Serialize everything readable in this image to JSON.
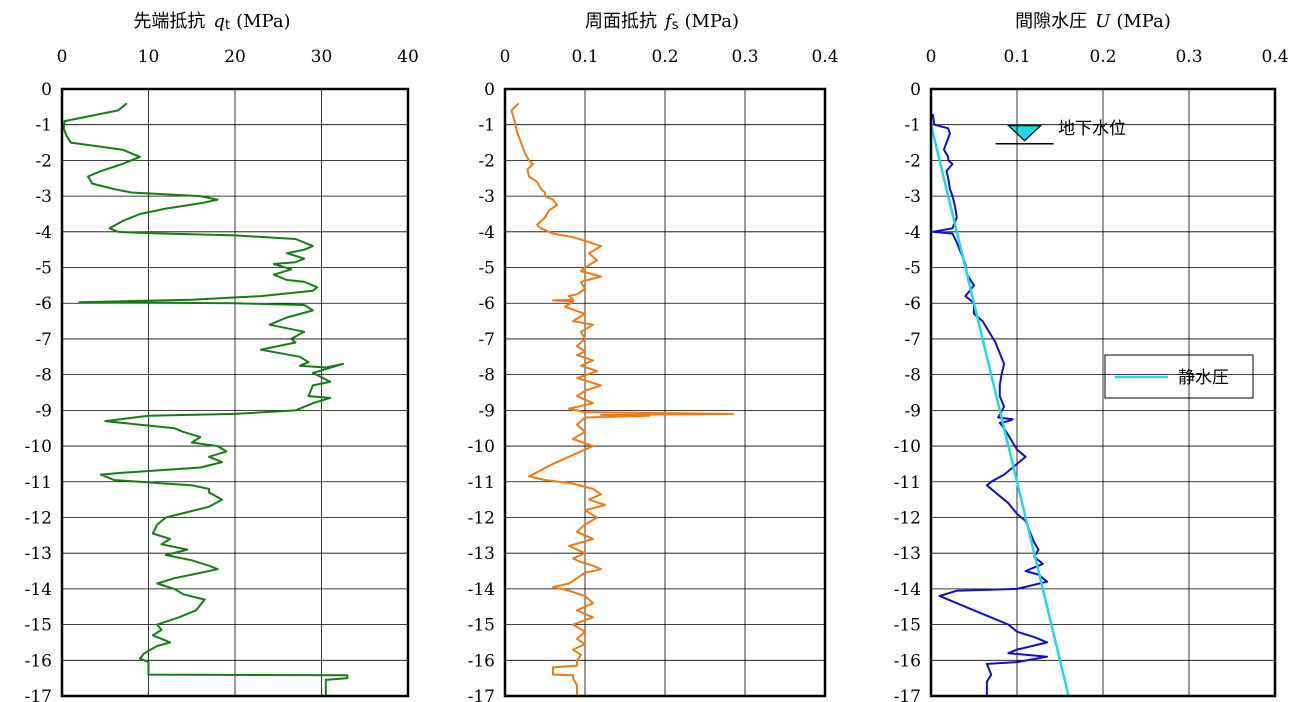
{
  "chart_data": [
    {
      "type": "line",
      "title_main": "先端抵抗",
      "title_symbol": "q",
      "title_subscript": "t",
      "title_unit": "(MPa)",
      "xlim": [
        0,
        40
      ],
      "ylim": [
        -17,
        0
      ],
      "xticks": [
        "0",
        "10",
        "20",
        "30",
        "40"
      ],
      "yticks": [
        "0",
        "-1",
        "-2",
        "-3",
        "-4",
        "-5",
        "-6",
        "-7",
        "-8",
        "-9",
        "-10",
        "-11",
        "-12",
        "-13",
        "-14",
        "-15",
        "-16",
        "-17"
      ],
      "grid": true,
      "series": [
        {
          "color": "#1a7a1a",
          "x": [
            7.5,
            6.5,
            0.3,
            0.2,
            0.5,
            1,
            4,
            7,
            9,
            7,
            4.5,
            3,
            3.5,
            6,
            8,
            16,
            18,
            16,
            12,
            9,
            7,
            5.5,
            6.5,
            8,
            12,
            20,
            27,
            29,
            28,
            26,
            28,
            27,
            24.5,
            26.5,
            24.5,
            26,
            28,
            29.5,
            29,
            23,
            15,
            2,
            20,
            28,
            29,
            26,
            24,
            28,
            26.5,
            27,
            23,
            27.5,
            28.5,
            27.5,
            30.5,
            32.5,
            29,
            31,
            29,
            28.5,
            31,
            29,
            27,
            20,
            10,
            5,
            13,
            14,
            16,
            15,
            18,
            19,
            17,
            18.5,
            16,
            7,
            4.5,
            6,
            12,
            15,
            17,
            17,
            18.5,
            17,
            14.5,
            12,
            11,
            10.5,
            12.5,
            11.5,
            14.5,
            12,
            15,
            17,
            18,
            15,
            13,
            11,
            13,
            14,
            16.5,
            15.5,
            13.5,
            11,
            11.5,
            10.5,
            12.5,
            11,
            9.5,
            9,
            10,
            10,
            33,
            33,
            30.5,
            30.5
          ],
          "y": [
            -0.4,
            -0.6,
            -0.9,
            -1.1,
            -1.3,
            -1.5,
            -1.6,
            -1.7,
            -1.9,
            -2.1,
            -2.3,
            -2.45,
            -2.65,
            -2.8,
            -2.9,
            -3.0,
            -3.1,
            -3.2,
            -3.35,
            -3.5,
            -3.7,
            -3.9,
            -4.0,
            -4.02,
            -4.05,
            -4.1,
            -4.2,
            -4.4,
            -4.5,
            -4.6,
            -4.75,
            -4.85,
            -4.9,
            -5.05,
            -5.2,
            -5.35,
            -5.4,
            -5.55,
            -5.65,
            -5.8,
            -5.9,
            -5.97,
            -6.0,
            -6.05,
            -6.2,
            -6.4,
            -6.6,
            -6.8,
            -7.0,
            -7.1,
            -7.3,
            -7.5,
            -7.65,
            -7.75,
            -7.8,
            -7.7,
            -7.95,
            -8.2,
            -8.3,
            -8.6,
            -8.65,
            -8.8,
            -9.0,
            -9.1,
            -9.15,
            -9.3,
            -9.5,
            -9.6,
            -9.75,
            -9.9,
            -10.0,
            -10.15,
            -10.3,
            -10.45,
            -10.6,
            -10.75,
            -10.8,
            -10.95,
            -11.05,
            -11.1,
            -11.2,
            -11.3,
            -11.5,
            -11.7,
            -11.85,
            -12.0,
            -12.2,
            -12.45,
            -12.6,
            -12.75,
            -12.9,
            -13.05,
            -13.2,
            -13.35,
            -13.45,
            -13.6,
            -13.7,
            -13.85,
            -14.0,
            -14.15,
            -14.3,
            -14.6,
            -14.8,
            -15.0,
            -15.15,
            -15.3,
            -15.5,
            -15.6,
            -15.8,
            -15.95,
            -16.05,
            -16.4,
            -16.42,
            -16.5,
            -16.55,
            -17.0
          ]
        }
      ]
    },
    {
      "type": "line",
      "title_main": "周面抵抗",
      "title_symbol": "f",
      "title_subscript": "s",
      "title_unit": "(MPa)",
      "xlim": [
        0,
        0.4
      ],
      "ylim": [
        -17,
        0
      ],
      "xticks": [
        "0",
        "0.1",
        "0.2",
        "0.3",
        "0.4"
      ],
      "yticks": [
        "0",
        "-1",
        "-2",
        "-3",
        "-4",
        "-5",
        "-6",
        "-7",
        "-8",
        "-9",
        "-10",
        "-11",
        "-12",
        "-13",
        "-14",
        "-15",
        "-16",
        "-17"
      ],
      "grid": true,
      "series": [
        {
          "color": "#f07a18",
          "x": [
            0.017,
            0.008,
            0.012,
            0.015,
            0.02,
            0.025,
            0.03,
            0.035,
            0.028,
            0.03,
            0.04,
            0.045,
            0.05,
            0.05,
            0.06,
            0.065,
            0.055,
            0.05,
            0.04,
            0.045,
            0.06,
            0.085,
            0.1,
            0.12,
            0.105,
            0.115,
            0.1,
            0.095,
            0.12,
            0.095,
            0.1,
            0.09,
            0.08,
            0.085,
            0.06,
            0.085,
            0.075,
            0.1,
            0.085,
            0.11,
            0.095,
            0.1,
            0.09,
            0.1,
            0.09,
            0.11,
            0.095,
            0.115,
            0.09,
            0.12,
            0.1,
            0.09,
            0.11,
            0.08,
            0.1,
            0.285,
            0.12,
            0.18,
            0.1,
            0.09,
            0.1,
            0.085,
            0.11,
            0.09,
            0.06,
            0.03,
            0.05,
            0.085,
            0.11,
            0.12,
            0.105,
            0.125,
            0.1,
            0.115,
            0.1,
            0.09,
            0.11,
            0.08,
            0.1,
            0.085,
            0.095,
            0.11,
            0.12,
            0.1,
            0.09,
            0.08,
            0.06,
            0.08,
            0.1,
            0.11,
            0.09,
            0.11,
            0.085,
            0.1,
            0.09,
            0.1,
            0.085,
            0.095,
            0.09,
            0.09,
            0.06,
            0.06,
            0.085,
            0.085,
            0.09,
            0.09
          ],
          "y": [
            -0.4,
            -0.6,
            -0.9,
            -1.2,
            -1.5,
            -1.8,
            -2.0,
            -2.1,
            -2.25,
            -2.45,
            -2.6,
            -2.8,
            -2.9,
            -3.0,
            -3.1,
            -3.25,
            -3.4,
            -3.6,
            -3.8,
            -3.9,
            -4.05,
            -4.15,
            -4.25,
            -4.4,
            -4.6,
            -4.8,
            -5.0,
            -5.1,
            -5.25,
            -5.4,
            -5.6,
            -5.75,
            -5.8,
            -5.9,
            -5.92,
            -5.95,
            -6.1,
            -6.3,
            -6.5,
            -6.6,
            -6.8,
            -7.0,
            -7.2,
            -7.35,
            -7.45,
            -7.6,
            -7.75,
            -7.9,
            -8.1,
            -8.3,
            -8.45,
            -8.6,
            -8.8,
            -8.95,
            -9.05,
            -9.1,
            -9.13,
            -9.15,
            -9.2,
            -9.4,
            -9.6,
            -9.8,
            -10.0,
            -10.2,
            -10.5,
            -10.85,
            -10.95,
            -11.05,
            -11.2,
            -11.35,
            -11.5,
            -11.65,
            -11.8,
            -12.0,
            -12.2,
            -12.4,
            -12.6,
            -12.8,
            -13.0,
            -13.15,
            -13.25,
            -13.35,
            -13.45,
            -13.55,
            -13.7,
            -13.85,
            -13.95,
            -14.05,
            -14.2,
            -14.4,
            -14.6,
            -14.8,
            -15.0,
            -15.2,
            -15.4,
            -15.55,
            -15.7,
            -15.85,
            -16.0,
            -16.15,
            -16.2,
            -16.4,
            -16.42,
            -16.5,
            -16.7,
            -17.0
          ]
        }
      ]
    },
    {
      "type": "line",
      "title_main": "間隙水圧",
      "title_symbol": "U",
      "title_subscript": "",
      "title_unit": "(MPa)",
      "xlim": [
        0,
        0.4
      ],
      "ylim": [
        -17,
        0
      ],
      "xticks": [
        "0",
        "0.1",
        "0.2",
        "0.3",
        "0.4"
      ],
      "yticks": [
        "0",
        "-1",
        "-2",
        "-3",
        "-4",
        "-5",
        "-6",
        "-7",
        "-8",
        "-9",
        "-10",
        "-11",
        "-12",
        "-13",
        "-14",
        "-15",
        "-16",
        "-17"
      ],
      "grid": true,
      "groundwater_label": "地下水位",
      "groundwater_depth": -1.0,
      "groundwater_x": 0.11,
      "legend": "right",
      "series": [
        {
          "color": "#1010c0",
          "x": [
            0.002,
            0.004,
            0.02,
            0.022,
            0.018,
            0.015,
            0.02,
            0.02,
            0.025,
            0.018,
            0.02,
            0.022,
            0.025,
            0.028,
            0.03,
            0.025,
            0.002,
            0.025,
            0.03,
            0.035,
            0.04,
            0.042,
            0.05,
            0.04,
            0.05,
            0.05,
            0.06,
            0.065,
            0.07,
            0.075,
            0.08,
            0.085,
            0.082,
            0.08,
            0.08,
            0.085,
            0.078,
            0.095,
            0.09,
            0.08,
            0.085,
            0.09,
            0.095,
            0.1,
            0.11,
            0.095,
            0.085,
            0.07,
            0.065,
            0.075,
            0.09,
            0.1,
            0.11,
            0.115,
            0.12,
            0.125,
            0.12,
            0.13,
            0.11,
            0.125,
            0.13,
            0.135,
            0.1,
            0.03,
            0.01,
            0.03,
            0.06,
            0.09,
            0.1,
            0.12,
            0.135,
            0.1,
            0.09,
            0.135,
            0.1,
            0.065,
            0.07,
            0.065,
            0.065
          ],
          "y": [
            -0.7,
            -1.0,
            -1.1,
            -1.25,
            -1.5,
            -1.7,
            -1.9,
            -2.0,
            -2.1,
            -2.3,
            -2.5,
            -2.8,
            -3.0,
            -3.3,
            -3.6,
            -3.9,
            -4.0,
            -4.05,
            -4.3,
            -4.6,
            -4.9,
            -5.2,
            -5.5,
            -5.8,
            -6.0,
            -6.3,
            -6.5,
            -6.7,
            -6.9,
            -7.1,
            -7.4,
            -7.7,
            -8.0,
            -8.3,
            -8.6,
            -8.9,
            -9.2,
            -9.25,
            -9.3,
            -9.35,
            -9.5,
            -9.7,
            -9.9,
            -10.1,
            -10.3,
            -10.6,
            -10.8,
            -11.0,
            -11.1,
            -11.3,
            -11.6,
            -11.9,
            -12.1,
            -12.4,
            -12.7,
            -12.9,
            -13.1,
            -13.3,
            -13.5,
            -13.6,
            -13.7,
            -13.8,
            -14.0,
            -14.05,
            -14.2,
            -14.4,
            -14.7,
            -15.0,
            -15.2,
            -15.35,
            -15.5,
            -15.7,
            -15.8,
            -15.9,
            -16.05,
            -16.1,
            -16.4,
            -16.6,
            -17.0
          ]
        },
        {
          "name": "静水圧",
          "color": "#22d8e8",
          "x": [
            0,
            0.16
          ],
          "y": [
            -1.0,
            -17.0
          ]
        }
      ]
    }
  ]
}
